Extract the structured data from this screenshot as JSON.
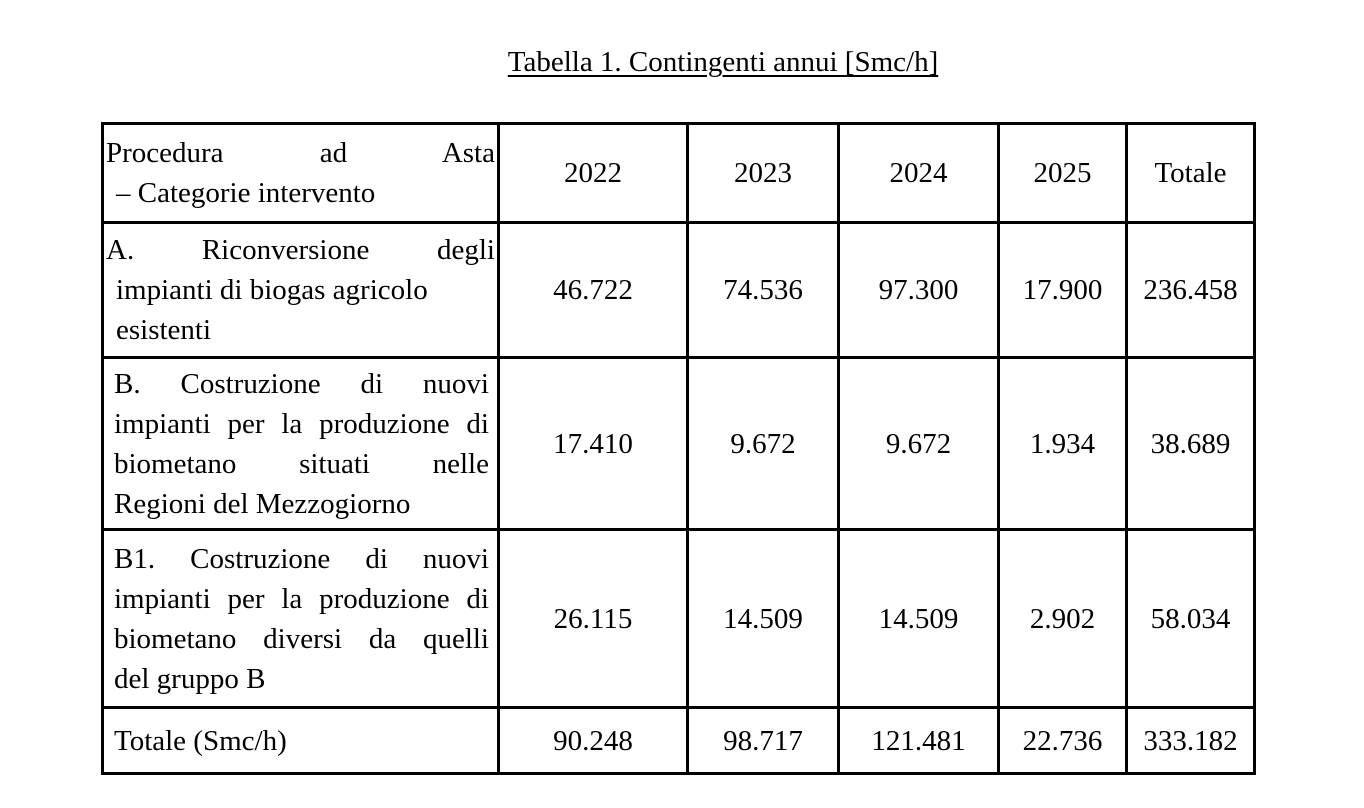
{
  "title": "Tabella 1. Contingenti annui [Smc/h]",
  "table": {
    "header": {
      "label_line1": "Procedura ad Asta",
      "label_line2": "– Categorie intervento",
      "years": [
        "2022",
        "2023",
        "2024",
        "2025"
      ],
      "total": "Totale"
    },
    "rows": [
      {
        "label_lines": [
          "A. Riconversione degli",
          "impianti di biogas agricolo",
          "esistenti"
        ],
        "values": [
          "46.722",
          "74.536",
          "97.300",
          "17.900",
          "236.458"
        ]
      },
      {
        "label_lines": [
          "B. Costruzione di nuovi",
          "impianti per la produzione di",
          "biometano situati nelle",
          "Regioni del Mezzogiorno"
        ],
        "values": [
          "17.410",
          "9.672",
          "9.672",
          "1.934",
          "38.689"
        ]
      },
      {
        "label_lines": [
          "B1. Costruzione di nuovi",
          "impianti per la produzione di",
          "biometano diversi da quelli",
          "del gruppo B"
        ],
        "values": [
          "26.115",
          "14.509",
          "14.509",
          "2.902",
          "58.034"
        ]
      }
    ],
    "total_row": {
      "label": "Totale (Smc/h)",
      "values": [
        "90.248",
        "98.717",
        "121.481",
        "22.736",
        "333.182"
      ]
    }
  }
}
